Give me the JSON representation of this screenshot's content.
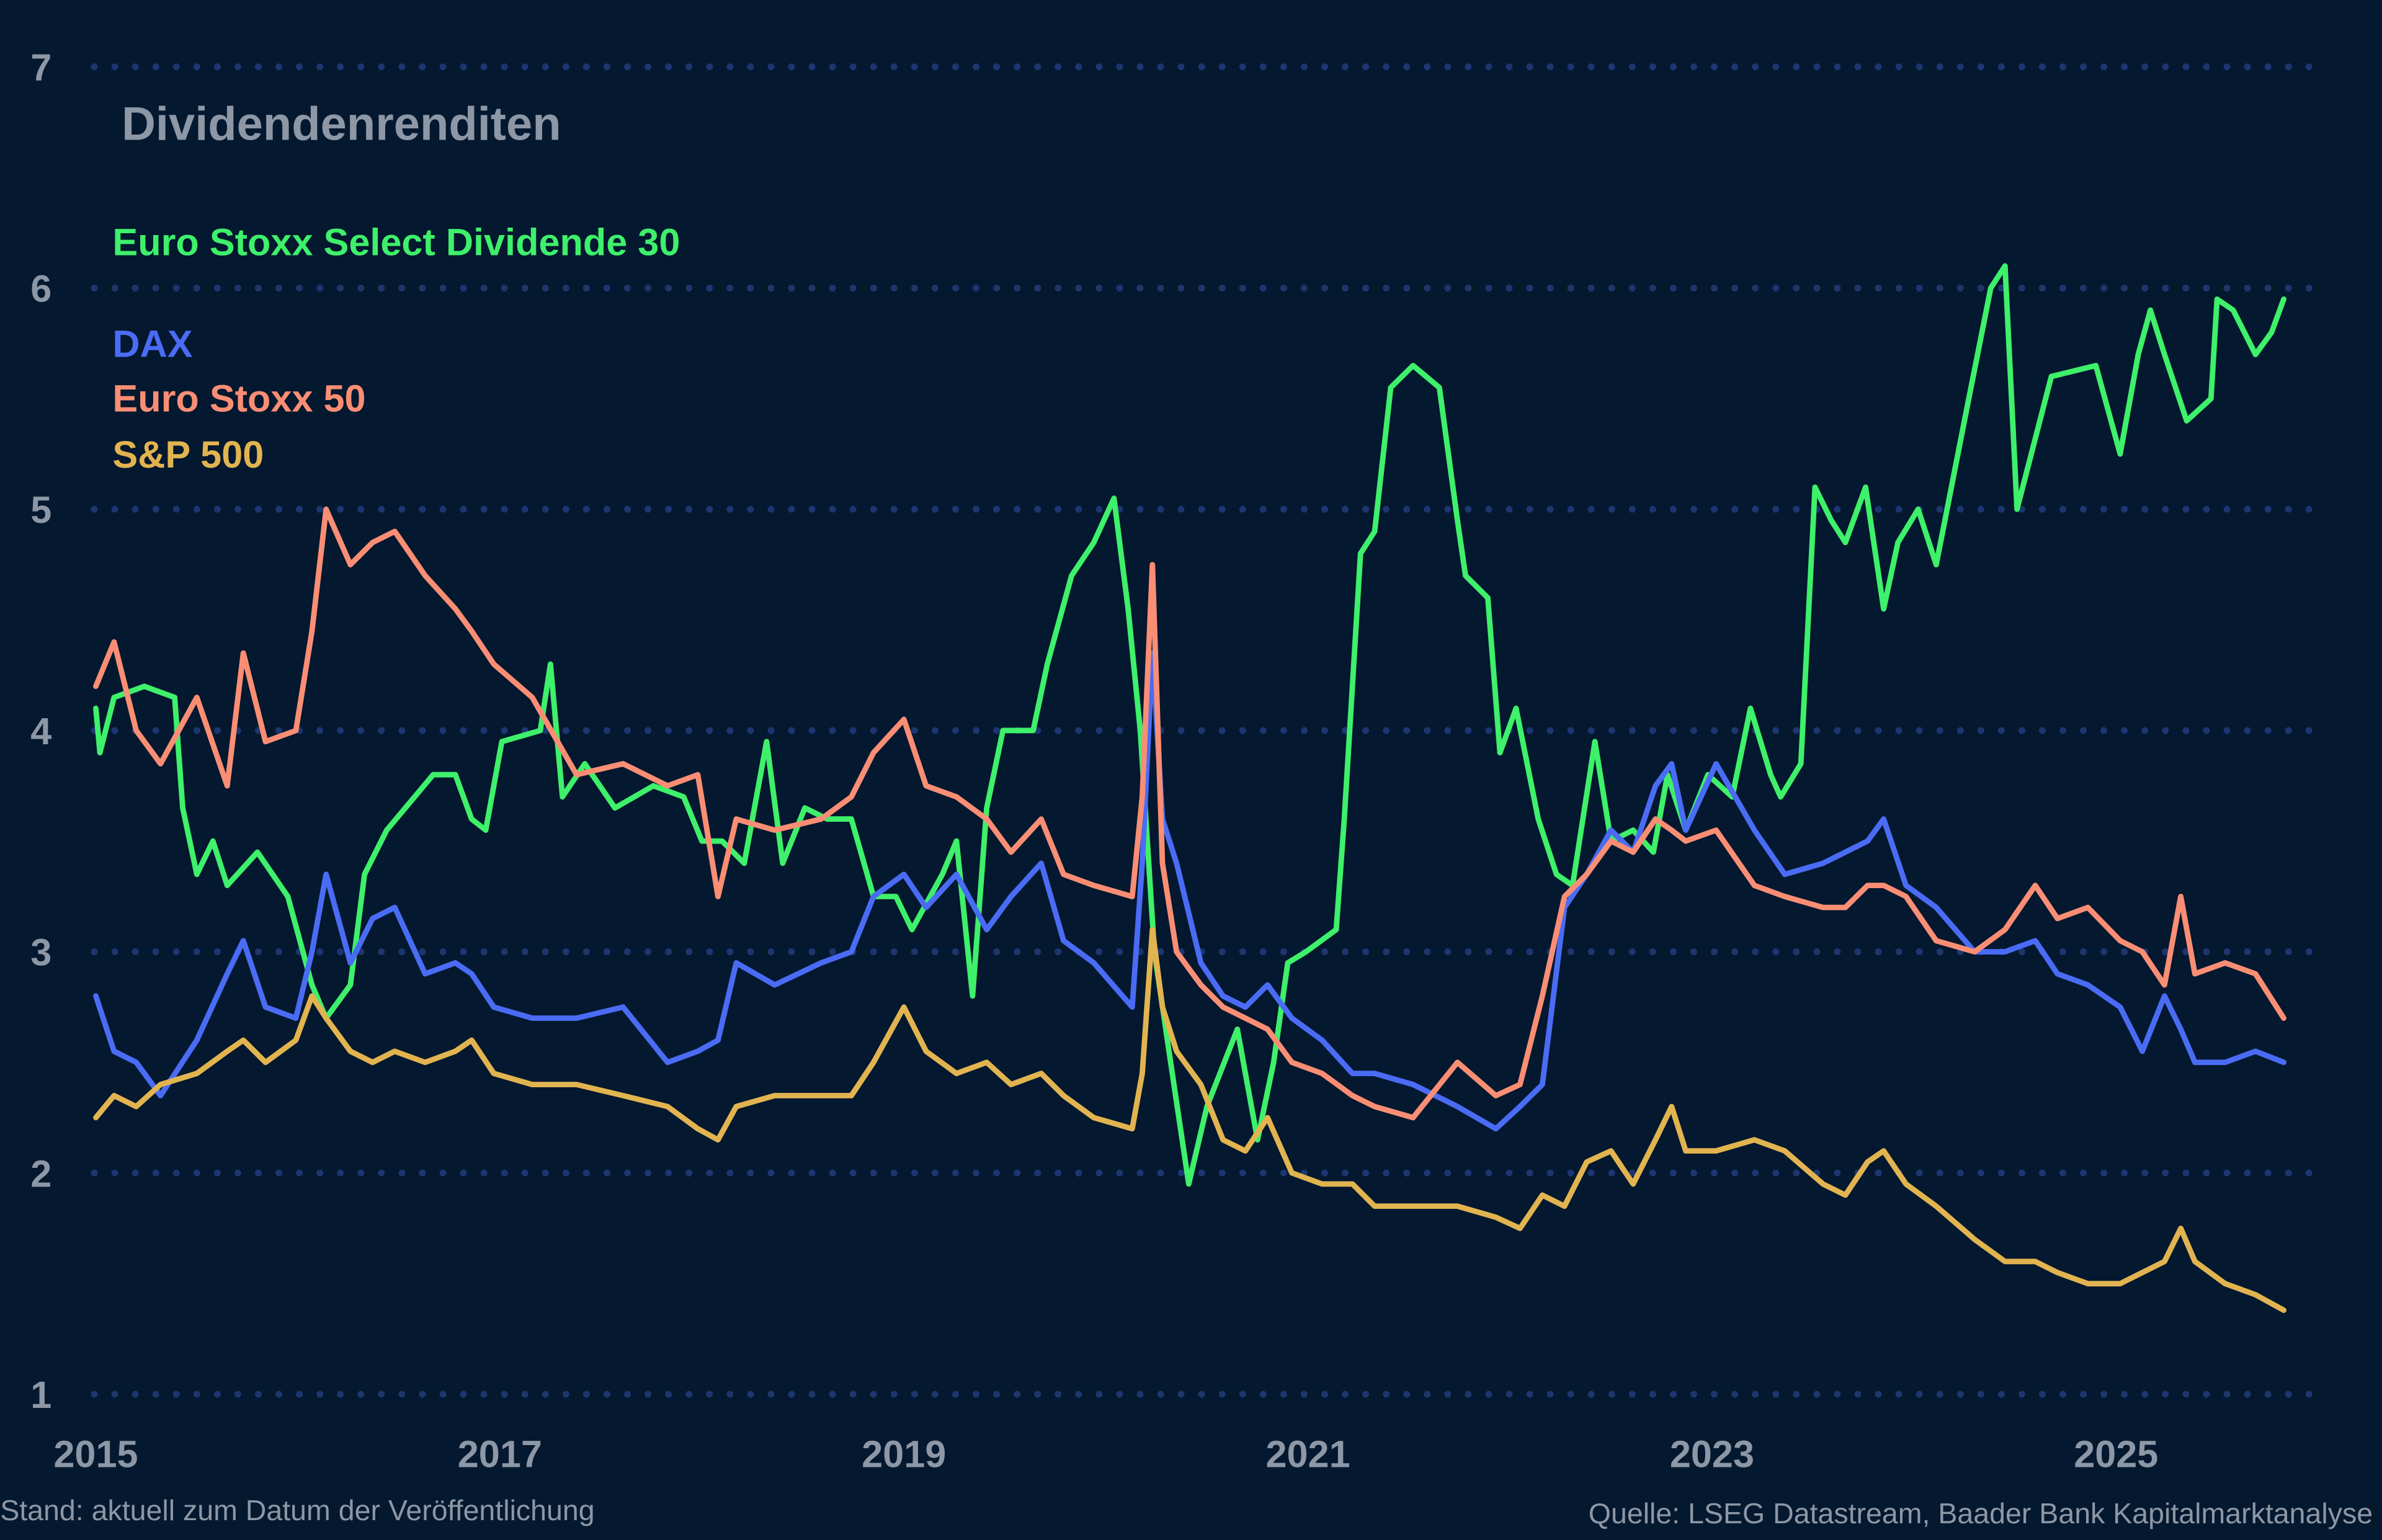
{
  "chart_data": {
    "type": "line",
    "title": "Dividendenrenditen",
    "xlabel": "",
    "ylabel": "",
    "xlim": [
      2015,
      2025.9
    ],
    "ylim": [
      1,
      7
    ],
    "yticks": [
      1,
      2,
      3,
      4,
      5,
      6,
      7
    ],
    "xticks": [
      2015,
      2017,
      2019,
      2021,
      2023,
      2025
    ],
    "grid": "horizontal dotted",
    "legend_placement": "top-left",
    "background": "#04182f",
    "series": [
      {
        "name": "Euro Stoxx Select Dividende 30",
        "color": "#3ef06a",
        "x": [
          2015.0,
          2015.02,
          2015.09,
          2015.24,
          2015.39,
          2015.43,
          2015.5,
          2015.58,
          2015.65,
          2015.8,
          2015.95,
          2016.07,
          2016.14,
          2016.26,
          2016.33,
          2016.44,
          2016.67,
          2016.78,
          2016.86,
          2016.93,
          2017.01,
          2017.2,
          2017.25,
          2017.31,
          2017.42,
          2017.57,
          2017.76,
          2017.91,
          2018.0,
          2018.1,
          2018.21,
          2018.32,
          2018.4,
          2018.51,
          2018.62,
          2018.74,
          2018.85,
          2018.96,
          2019.04,
          2019.19,
          2019.26,
          2019.34,
          2019.41,
          2019.49,
          2019.64,
          2019.71,
          2019.83,
          2019.94,
          2020.04,
          2020.11,
          2020.17,
          2020.24,
          2020.32,
          2020.41,
          2020.5,
          2020.65,
          2020.75,
          2020.83,
          2020.9,
          2020.99,
          2021.14,
          2021.18,
          2021.26,
          2021.33,
          2021.41,
          2021.52,
          2021.65,
          2021.74,
          2021.78,
          2021.89,
          2021.95,
          2022.03,
          2022.14,
          2022.23,
          2022.31,
          2022.42,
          2022.5,
          2022.61,
          2022.71,
          2022.78,
          2022.87,
          2022.98,
          2023.1,
          2023.19,
          2023.29,
          2023.34,
          2023.44,
          2023.51,
          2023.59,
          2023.66,
          2023.76,
          2023.85,
          2023.92,
          2024.02,
          2024.11,
          2024.26,
          2024.38,
          2024.45,
          2024.51,
          2024.68,
          2024.9,
          2025.02,
          2025.11,
          2025.17,
          2025.24,
          2025.35,
          2025.47,
          2025.5,
          2025.58,
          2025.69,
          2025.77,
          2025.83
        ],
        "values": [
          4.1,
          3.9,
          4.15,
          4.2,
          4.15,
          3.65,
          3.35,
          3.5,
          3.3,
          3.45,
          3.25,
          2.85,
          2.7,
          2.85,
          3.35,
          3.55,
          3.8,
          3.8,
          3.6,
          3.55,
          3.95,
          4.0,
          4.3,
          3.7,
          3.85,
          3.65,
          3.75,
          3.7,
          3.5,
          3.5,
          3.4,
          3.95,
          3.4,
          3.65,
          3.6,
          3.6,
          3.25,
          3.25,
          3.1,
          3.35,
          3.5,
          2.8,
          3.65,
          4.0,
          4.0,
          4.3,
          4.7,
          4.85,
          5.05,
          4.55,
          4.0,
          3.0,
          2.5,
          1.95,
          2.3,
          2.65,
          2.15,
          2.5,
          2.95,
          3.0,
          3.1,
          3.6,
          4.8,
          4.9,
          5.55,
          5.65,
          5.55,
          4.95,
          4.7,
          4.6,
          3.9,
          4.1,
          3.6,
          3.35,
          3.3,
          3.95,
          3.5,
          3.55,
          3.45,
          3.8,
          3.55,
          3.8,
          3.7,
          4.1,
          3.8,
          3.7,
          3.85,
          5.1,
          4.95,
          4.85,
          5.1,
          4.55,
          4.85,
          5.0,
          4.75,
          5.45,
          6.0,
          6.1,
          5.0,
          5.6,
          5.65,
          5.25,
          5.7,
          5.9,
          5.7,
          5.4,
          5.5,
          5.95,
          5.9,
          5.7,
          5.8,
          5.95
        ]
      },
      {
        "name": "DAX",
        "color": "#4a6cf5",
        "x": [
          2015.0,
          2015.09,
          2015.2,
          2015.32,
          2015.5,
          2015.65,
          2015.73,
          2015.84,
          2015.99,
          2016.07,
          2016.14,
          2016.26,
          2016.37,
          2016.48,
          2016.63,
          2016.78,
          2016.86,
          2016.97,
          2017.16,
          2017.38,
          2017.61,
          2017.83,
          2017.98,
          2018.08,
          2018.17,
          2018.36,
          2018.59,
          2018.74,
          2018.85,
          2019.0,
          2019.11,
          2019.26,
          2019.41,
          2019.53,
          2019.68,
          2019.79,
          2019.94,
          2020.13,
          2020.18,
          2020.23,
          2020.28,
          2020.35,
          2020.47,
          2020.58,
          2020.69,
          2020.8,
          2020.92,
          2021.07,
          2021.22,
          2021.33,
          2021.52,
          2021.74,
          2021.93,
          2022.05,
          2022.16,
          2022.27,
          2022.38,
          2022.5,
          2022.61,
          2022.72,
          2022.8,
          2022.87,
          2023.02,
          2023.21,
          2023.36,
          2023.55,
          2023.66,
          2023.77,
          2023.85,
          2023.96,
          2024.11,
          2024.3,
          2024.45,
          2024.6,
          2024.71,
          2024.86,
          2025.02,
          2025.13,
          2025.24,
          2025.32,
          2025.39,
          2025.54,
          2025.69,
          2025.83
        ],
        "values": [
          2.8,
          2.55,
          2.5,
          2.35,
          2.6,
          2.9,
          3.05,
          2.75,
          2.7,
          3.0,
          3.35,
          2.95,
          3.15,
          3.2,
          2.9,
          2.95,
          2.9,
          2.75,
          2.7,
          2.7,
          2.75,
          2.5,
          2.55,
          2.6,
          2.95,
          2.85,
          2.95,
          3.0,
          3.25,
          3.35,
          3.2,
          3.35,
          3.1,
          3.25,
          3.4,
          3.05,
          2.95,
          2.75,
          3.4,
          4.35,
          3.6,
          3.4,
          2.95,
          2.8,
          2.75,
          2.85,
          2.7,
          2.6,
          2.45,
          2.45,
          2.4,
          2.3,
          2.2,
          2.3,
          2.4,
          3.2,
          3.35,
          3.55,
          3.45,
          3.75,
          3.85,
          3.55,
          3.85,
          3.55,
          3.35,
          3.4,
          3.45,
          3.5,
          3.6,
          3.3,
          3.2,
          3.0,
          3.0,
          3.05,
          2.9,
          2.85,
          2.75,
          2.55,
          2.8,
          2.65,
          2.5,
          2.5,
          2.55,
          2.5
        ]
      },
      {
        "name": "Euro Stoxx 50",
        "color": "#f98e74",
        "x": [
          2015.0,
          2015.09,
          2015.2,
          2015.32,
          2015.5,
          2015.65,
          2015.73,
          2015.84,
          2015.99,
          2016.07,
          2016.14,
          2016.26,
          2016.37,
          2016.48,
          2016.63,
          2016.78,
          2016.86,
          2016.97,
          2017.16,
          2017.38,
          2017.61,
          2017.83,
          2017.98,
          2018.08,
          2018.17,
          2018.36,
          2018.59,
          2018.74,
          2018.85,
          2019.0,
          2019.11,
          2019.26,
          2019.41,
          2019.53,
          2019.68,
          2019.79,
          2019.94,
          2020.13,
          2020.18,
          2020.23,
          2020.28,
          2020.35,
          2020.47,
          2020.58,
          2020.69,
          2020.8,
          2020.92,
          2021.07,
          2021.22,
          2021.33,
          2021.52,
          2021.74,
          2021.93,
          2022.05,
          2022.16,
          2022.27,
          2022.38,
          2022.5,
          2022.61,
          2022.72,
          2022.8,
          2022.87,
          2023.02,
          2023.21,
          2023.36,
          2023.55,
          2023.66,
          2023.77,
          2023.85,
          2023.96,
          2024.11,
          2024.3,
          2024.45,
          2024.6,
          2024.71,
          2024.86,
          2025.02,
          2025.13,
          2025.24,
          2025.32,
          2025.39,
          2025.54,
          2025.69,
          2025.83
        ],
        "values": [
          4.2,
          4.4,
          4.0,
          3.85,
          4.15,
          3.75,
          4.35,
          3.95,
          4.0,
          4.45,
          5.0,
          4.75,
          4.85,
          4.9,
          4.7,
          4.55,
          4.45,
          4.3,
          4.15,
          3.8,
          3.85,
          3.75,
          3.8,
          3.25,
          3.6,
          3.55,
          3.6,
          3.7,
          3.9,
          4.05,
          3.75,
          3.7,
          3.6,
          3.45,
          3.6,
          3.35,
          3.3,
          3.25,
          3.7,
          4.75,
          3.4,
          3.0,
          2.85,
          2.75,
          2.7,
          2.65,
          2.5,
          2.45,
          2.35,
          2.3,
          2.25,
          2.5,
          2.35,
          2.4,
          2.8,
          3.25,
          3.35,
          3.5,
          3.45,
          3.6,
          3.55,
          3.5,
          3.55,
          3.3,
          3.25,
          3.2,
          3.2,
          3.3,
          3.3,
          3.25,
          3.05,
          3.0,
          3.1,
          3.3,
          3.15,
          3.2,
          3.05,
          3.0,
          2.85,
          3.25,
          2.9,
          2.95,
          2.9,
          2.7
        ]
      },
      {
        "name": "S&P 500",
        "color": "#e2b450",
        "x": [
          2015.0,
          2015.09,
          2015.2,
          2015.32,
          2015.5,
          2015.65,
          2015.73,
          2015.84,
          2015.99,
          2016.07,
          2016.14,
          2016.26,
          2016.37,
          2016.48,
          2016.63,
          2016.78,
          2016.86,
          2016.97,
          2017.16,
          2017.38,
          2017.61,
          2017.83,
          2017.98,
          2018.08,
          2018.17,
          2018.36,
          2018.59,
          2018.74,
          2018.85,
          2019.0,
          2019.11,
          2019.26,
          2019.41,
          2019.53,
          2019.68,
          2019.79,
          2019.94,
          2020.13,
          2020.18,
          2020.23,
          2020.28,
          2020.35,
          2020.47,
          2020.58,
          2020.69,
          2020.8,
          2020.92,
          2021.07,
          2021.22,
          2021.33,
          2021.52,
          2021.74,
          2021.93,
          2022.05,
          2022.16,
          2022.27,
          2022.38,
          2022.5,
          2022.61,
          2022.72,
          2022.8,
          2022.87,
          2023.02,
          2023.21,
          2023.36,
          2023.55,
          2023.66,
          2023.77,
          2023.85,
          2023.96,
          2024.11,
          2024.3,
          2024.45,
          2024.6,
          2024.71,
          2024.86,
          2025.02,
          2025.13,
          2025.24,
          2025.32,
          2025.39,
          2025.54,
          2025.69,
          2025.83
        ],
        "values": [
          2.25,
          2.35,
          2.3,
          2.4,
          2.45,
          2.55,
          2.6,
          2.5,
          2.6,
          2.8,
          2.7,
          2.55,
          2.5,
          2.55,
          2.5,
          2.55,
          2.6,
          2.45,
          2.4,
          2.4,
          2.35,
          2.3,
          2.2,
          2.15,
          2.3,
          2.35,
          2.35,
          2.35,
          2.5,
          2.75,
          2.55,
          2.45,
          2.5,
          2.4,
          2.45,
          2.35,
          2.25,
          2.2,
          2.45,
          3.1,
          2.75,
          2.55,
          2.4,
          2.15,
          2.1,
          2.25,
          2.0,
          1.95,
          1.95,
          1.85,
          1.85,
          1.85,
          1.8,
          1.75,
          1.9,
          1.85,
          2.05,
          2.1,
          1.95,
          2.15,
          2.3,
          2.1,
          2.1,
          2.15,
          2.1,
          1.95,
          1.9,
          2.05,
          2.1,
          1.95,
          1.85,
          1.7,
          1.6,
          1.6,
          1.55,
          1.5,
          1.5,
          1.55,
          1.6,
          1.75,
          1.6,
          1.5,
          1.45,
          1.38
        ]
      }
    ]
  },
  "footer": {
    "left": "Stand: aktuell zum Datum der Veröffentlichung",
    "right": "Quelle: LSEG Datastream, Baader Bank Kapitalmarktanalyse"
  }
}
